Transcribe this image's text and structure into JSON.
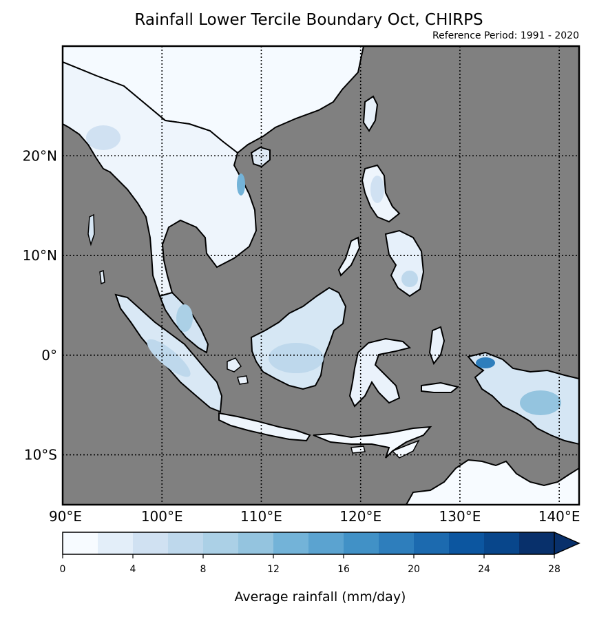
{
  "title": "Rainfall Lower Tercile Boundary Oct, CHIRPS",
  "subtitle": "Reference Period: 1991 - 2020",
  "map": {
    "lon_range": [
      90,
      142
    ],
    "lat_range": [
      -15,
      31
    ],
    "ocean_color": "#808080",
    "land_base_color": "#f5faff",
    "gridlines": "dotted",
    "x_ticks": [
      {
        "value": 90,
        "label": "90°E"
      },
      {
        "value": 100,
        "label": "100°E"
      },
      {
        "value": 110,
        "label": "110°E"
      },
      {
        "value": 120,
        "label": "120°E"
      },
      {
        "value": 130,
        "label": "130°E"
      },
      {
        "value": 140,
        "label": "140°E"
      }
    ],
    "y_ticks": [
      {
        "value": 20,
        "label": "20°N"
      },
      {
        "value": 10,
        "label": "10°N"
      },
      {
        "value": 0,
        "label": "0°"
      },
      {
        "value": -10,
        "label": "10°S"
      }
    ]
  },
  "colorbar": {
    "label": "Average rainfall (mm/day)",
    "min": 0,
    "max": 28,
    "extend": "max",
    "tick_values": [
      0,
      4,
      8,
      12,
      16,
      20,
      24,
      28
    ],
    "tick_labels": [
      "0",
      "4",
      "8",
      "12",
      "16",
      "20",
      "24",
      "28"
    ],
    "colors": [
      "#f7fbff",
      "#e3eef9",
      "#d0e1f2",
      "#bed8ec",
      "#abd0e6",
      "#94c4df",
      "#73b3d8",
      "#5ba3d0",
      "#4191c6",
      "#2e7ebc",
      "#1c6aaf",
      "#0c56a0",
      "#08468b",
      "#08306b"
    ]
  }
}
